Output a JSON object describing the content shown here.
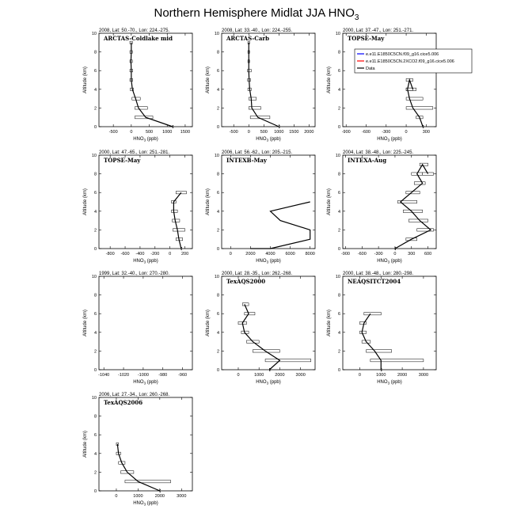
{
  "title": "Northern Hemisphere Midlat JJA HNO",
  "title_sub": "3",
  "legend": {
    "items": [
      {
        "label": "e.e11.E1850C5CN.f09_g16.cice5.006",
        "color": "#0000ff"
      },
      {
        "label": "e.e11.E1850C5CN.2XCO2.f09_g16.cice5.006",
        "color": "#ff0000"
      },
      {
        "label": "Data",
        "color": "#000000"
      }
    ]
  },
  "chart_data": [
    {
      "type": "line",
      "meta": "2008, Lat: 50.-70., Lon: 224.-275.",
      "name": "ARCTAS-Coldlake mid",
      "xlabel": "HNO3 (ppb)",
      "ylabel": "Altitude (km)",
      "xlim": [
        -900,
        1700
      ],
      "xticks": [
        -500,
        0,
        500,
        1000,
        1500
      ],
      "ylim": [
        0,
        10
      ],
      "yticks": [
        0,
        2,
        4,
        6,
        8,
        10
      ],
      "x": [
        1150,
        400,
        200,
        120,
        30,
        0,
        0,
        -10,
        0,
        0
      ],
      "y": [
        0,
        1,
        2,
        3,
        4,
        5,
        6,
        7,
        8,
        9
      ],
      "box_lo": [
        1150,
        100,
        100,
        20,
        -30,
        -40,
        -40,
        -40,
        -40,
        -40
      ],
      "box_hi": [
        1150,
        600,
        450,
        250,
        60,
        40,
        40,
        30,
        30,
        30
      ]
    },
    {
      "type": "line",
      "meta": "2008, Lat: 33.-40., Lon: 224.-255.",
      "name": "ARCTAS-Carb",
      "xlabel": "HNO3 (ppb)",
      "ylabel": "Altitude (km)",
      "xlim": [
        -900,
        2200
      ],
      "xticks": [
        -500,
        0,
        500,
        1000,
        1500,
        2000
      ],
      "ylim": [
        0,
        10
      ],
      "yticks": [
        0,
        2,
        4,
        6,
        8,
        10
      ],
      "x": [
        1000,
        300,
        100,
        80,
        30,
        10,
        0,
        0,
        0,
        0
      ],
      "y": [
        0,
        1,
        2,
        3,
        4,
        5,
        6,
        7,
        8,
        9
      ],
      "box_lo": [
        1000,
        50,
        0,
        0,
        -30,
        -40,
        -40,
        -30,
        -30,
        -30
      ],
      "box_hi": [
        1000,
        700,
        400,
        250,
        80,
        60,
        80,
        30,
        30,
        30
      ]
    },
    {
      "type": "line",
      "meta": "2000, Lat: 37.-47., Lon: 251.-271.",
      "name": "TOPSE-May",
      "xlabel": "HNO3 (ppb)",
      "ylabel": "Altitude (km)",
      "xlim": [
        -950,
        450
      ],
      "xticks": [
        -900,
        -600,
        -300,
        0,
        300
      ],
      "ylim": [
        0,
        10
      ],
      "yticks": [
        0,
        2,
        4,
        6,
        8,
        10
      ],
      "x": [
        250,
        200,
        100,
        50,
        20,
        50,
        100
      ],
      "y": [
        0,
        1,
        2,
        3,
        4,
        5,
        4
      ],
      "box_lo": [
        250,
        150,
        0,
        0,
        0,
        0,
        0
      ],
      "box_hi": [
        250,
        250,
        400,
        250,
        150,
        100,
        100
      ]
    },
    {
      "type": "line",
      "meta": "2000, Lat: 47.-65., Lon: 251.-281.",
      "name": "TOPSE-May",
      "xlabel": "HNO3 (ppb)",
      "ylabel": "Altitude (km)",
      "xlim": [
        -950,
        300
      ],
      "xticks": [
        -800,
        -600,
        -400,
        -200,
        0,
        200
      ],
      "ylim": [
        0,
        10
      ],
      "yticks": [
        0,
        2,
        4,
        6,
        8,
        10
      ],
      "x": [
        150,
        120,
        100,
        70,
        50,
        50,
        150
      ],
      "y": [
        0,
        1,
        2,
        3,
        4,
        5,
        6
      ],
      "box_lo": [
        150,
        80,
        40,
        30,
        20,
        20,
        80
      ],
      "box_hi": [
        150,
        170,
        200,
        130,
        100,
        80,
        220
      ]
    },
    {
      "type": "line",
      "meta": "2006, Lat: 56.-62., Lon: 205.-215.",
      "name": "INTEXB-May",
      "xlabel": "HNO3 (ppb)",
      "ylabel": "Altitude (km)",
      "xlim": [
        -900,
        8500
      ],
      "xticks": [
        0,
        2000,
        4000,
        6000,
        8000
      ],
      "ylim": [
        0,
        10
      ],
      "yticks": [
        0,
        2,
        4,
        6,
        8,
        10
      ],
      "x": [
        2000,
        4000,
        8000,
        8000,
        5000,
        4000,
        8000
      ],
      "y": [
        0,
        0,
        1,
        2,
        3,
        4,
        5
      ],
      "box_lo": [],
      "box_hi": []
    },
    {
      "type": "line",
      "meta": "2004, Lat: 38.-48., Lon: 225.-245.",
      "name": "INTEXA-Aug",
      "xlabel": "HNO3 (ppb)",
      "ylabel": "Altitude (km)",
      "xlim": [
        -950,
        750
      ],
      "xticks": [
        -900,
        -600,
        -300,
        0,
        300,
        600
      ],
      "ylim": [
        0,
        10
      ],
      "yticks": [
        0,
        2,
        4,
        6,
        8,
        10
      ],
      "x": [
        0,
        300,
        650,
        450,
        300,
        100,
        300,
        500,
        400,
        500,
        600
      ],
      "y": [
        0,
        1,
        2,
        3,
        4,
        5,
        6,
        7,
        8,
        9,
        8
      ],
      "box_lo": [
        0,
        200,
        400,
        250,
        150,
        50,
        200,
        350,
        300,
        450,
        500
      ],
      "box_hi": [
        0,
        400,
        700,
        600,
        500,
        400,
        450,
        550,
        500,
        600,
        700
      ]
    },
    {
      "type": "line",
      "meta": "1999, Lat: 32.-40., Lon: 270.-280.",
      "name": "",
      "xlabel": "HNO3 (ppb)",
      "ylabel": "Altitude (km)",
      "xlim": [
        -1045,
        -950
      ],
      "xticks": [
        -1040,
        -1020,
        -1000,
        -980,
        -960
      ],
      "ylim": [
        0,
        10
      ],
      "yticks": [
        0,
        2,
        4,
        6,
        8,
        10
      ],
      "x": [],
      "y": [],
      "box_lo": [],
      "box_hi": []
    },
    {
      "type": "line",
      "meta": "2000, Lat: 28.-35., Lon: 262.-268.",
      "name": "TexAQS2000",
      "xlabel": "HNO3 (ppb)",
      "ylabel": "Altitude (km)",
      "xlim": [
        -800,
        3700
      ],
      "xticks": [
        0,
        1000,
        2000,
        3000
      ],
      "ylim": [
        0,
        10
      ],
      "yticks": [
        0,
        2,
        4,
        6,
        8,
        10
      ],
      "x": [
        1500,
        2000,
        1300,
        700,
        300,
        200,
        500,
        300
      ],
      "y": [
        0,
        1,
        2,
        3,
        4,
        5,
        6,
        7
      ],
      "box_lo": [
        1500,
        1300,
        700,
        400,
        150,
        0,
        300,
        200
      ],
      "box_hi": [
        1500,
        3500,
        2000,
        1000,
        500,
        400,
        800,
        500
      ]
    },
    {
      "type": "line",
      "meta": "2000, Lat: 38.-48., Lon: 280.-298.",
      "name": "NEAQSITCT2004",
      "xlabel": "HNO3 (ppb)",
      "ylabel": "Altitude (km)",
      "xlim": [
        -800,
        3600
      ],
      "xticks": [
        0,
        1000,
        2000,
        3000
      ],
      "ylim": [
        0,
        10
      ],
      "yticks": [
        0,
        2,
        4,
        6,
        8,
        10
      ],
      "x": [
        1000,
        1000,
        700,
        300,
        100,
        200,
        500
      ],
      "y": [
        0,
        1,
        2,
        3,
        4,
        5,
        6
      ],
      "box_lo": [
        1000,
        500,
        300,
        100,
        0,
        0,
        200
      ],
      "box_hi": [
        1000,
        3000,
        1500,
        500,
        300,
        300,
        1000
      ]
    },
    {
      "type": "line",
      "meta": "2006, Lat: 27.-34., Lon: 260.-268.",
      "name": "TexAQS2006",
      "xlabel": "HNO3 (ppb)",
      "ylabel": "Altitude (km)",
      "xlim": [
        -800,
        3500
      ],
      "xticks": [
        0,
        1000,
        2000,
        3000
      ],
      "ylim": [
        0,
        10
      ],
      "yticks": [
        0,
        2,
        4,
        6,
        8,
        10
      ],
      "x": [
        2000,
        1000,
        500,
        250,
        100,
        50
      ],
      "y": [
        0,
        1,
        2,
        3,
        4,
        5
      ],
      "box_lo": [
        2000,
        400,
        200,
        100,
        0,
        0
      ],
      "box_hi": [
        2000,
        2500,
        800,
        400,
        200,
        100
      ]
    }
  ]
}
